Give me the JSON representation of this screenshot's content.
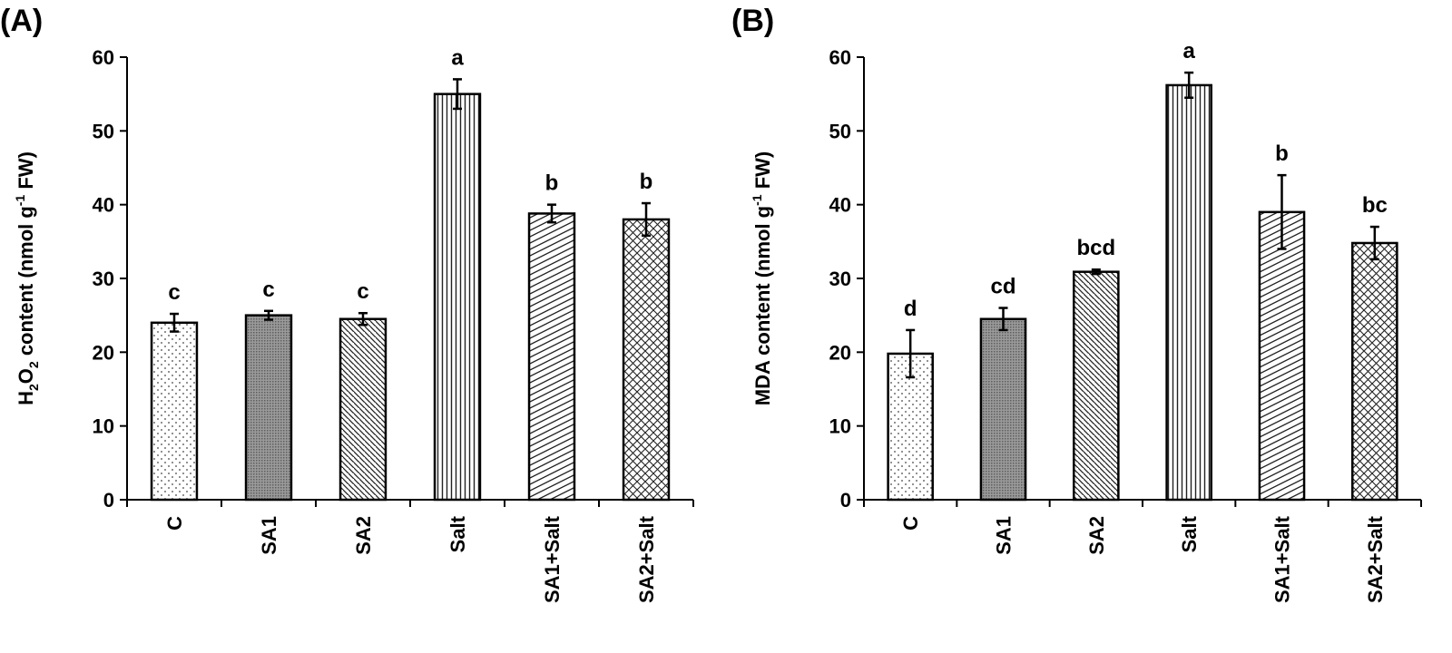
{
  "chart_data": [
    {
      "type": "bar",
      "panel_label": "(A)",
      "title": "",
      "xlabel": "",
      "ylabel_parts": {
        "pre": "H",
        "sub1": "2",
        "mid": "O",
        "sub2": "2",
        "post": " content (nmol g",
        "sup": "-1",
        "end": " FW)"
      },
      "categories": [
        "C",
        "SA1",
        "SA2",
        "Salt",
        "SA1+Salt",
        "SA2+Salt"
      ],
      "values": [
        24.0,
        25.0,
        24.5,
        55.0,
        38.8,
        38.0
      ],
      "errors": [
        1.2,
        0.6,
        0.8,
        2.0,
        1.2,
        2.2
      ],
      "significance": [
        "c",
        "c",
        "c",
        "a",
        "b",
        "b"
      ],
      "patterns": [
        "dots",
        "dense",
        "diag-right",
        "vertical",
        "diag-left",
        "crosshatch"
      ],
      "ylim": [
        0,
        60
      ],
      "yticks": [
        0,
        10,
        20,
        30,
        40,
        50,
        60
      ],
      "grid": false,
      "legend": "none"
    },
    {
      "type": "bar",
      "panel_label": "(B)",
      "title": "",
      "xlabel": "",
      "ylabel_parts": {
        "pre": "MDA content (nmol g",
        "sup": "-1",
        "end": " FW)"
      },
      "categories": [
        "C",
        "SA1",
        "SA2",
        "Salt",
        "SA1+Salt",
        "SA2+Salt"
      ],
      "values": [
        19.8,
        24.5,
        30.9,
        56.2,
        39.0,
        34.8
      ],
      "errors": [
        3.2,
        1.5,
        0.3,
        1.7,
        5.0,
        2.2
      ],
      "significance": [
        "d",
        "cd",
        "bcd",
        "a",
        "b",
        "bc"
      ],
      "patterns": [
        "dots",
        "dense",
        "diag-right",
        "vertical",
        "diag-left",
        "crosshatch"
      ],
      "ylim": [
        0,
        60
      ],
      "yticks": [
        0,
        10,
        20,
        30,
        40,
        50,
        60
      ],
      "grid": false,
      "legend": "none"
    }
  ]
}
